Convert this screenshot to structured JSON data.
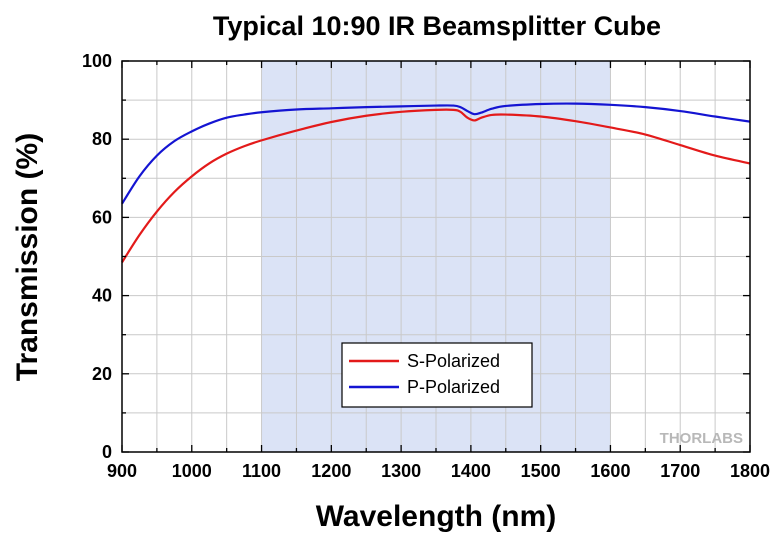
{
  "chart_data": {
    "type": "line",
    "title": "Typical 10:90 IR Beamsplitter Cube",
    "xlabel": "Wavelength (nm)",
    "ylabel": "Transmission (%)",
    "xlim": [
      900,
      1800
    ],
    "ylim": [
      0,
      100
    ],
    "x_ticks": [
      900,
      1000,
      1100,
      1200,
      1300,
      1400,
      1500,
      1600,
      1700,
      1800
    ],
    "y_ticks": [
      0,
      20,
      40,
      60,
      80,
      100
    ],
    "grid": true,
    "highlight_band": {
      "x_start": 1100,
      "x_end": 1600,
      "color": "#dbe3f6"
    },
    "legend": {
      "position": "bottom-center"
    },
    "watermark": "THORLABS",
    "series": [
      {
        "name": "S-Polarized",
        "color": "#e31a1a",
        "x": [
          900,
          925,
          950,
          975,
          1000,
          1025,
          1050,
          1075,
          1100,
          1150,
          1200,
          1250,
          1300,
          1350,
          1375,
          1385,
          1395,
          1405,
          1415,
          1430,
          1450,
          1500,
          1550,
          1600,
          1650,
          1700,
          1750,
          1800
        ],
        "y": [
          48.5,
          55.5,
          61.5,
          66.5,
          70.5,
          73.8,
          76.3,
          78.2,
          79.7,
          82.2,
          84.4,
          86.0,
          87.0,
          87.5,
          87.5,
          87.0,
          85.5,
          84.8,
          85.5,
          86.2,
          86.3,
          85.8,
          84.6,
          83.0,
          81.2,
          78.5,
          75.8,
          73.8
        ]
      },
      {
        "name": "P-Polarized",
        "color": "#1414d2",
        "x": [
          900,
          925,
          950,
          975,
          1000,
          1025,
          1050,
          1075,
          1100,
          1150,
          1200,
          1250,
          1300,
          1350,
          1375,
          1385,
          1395,
          1405,
          1415,
          1430,
          1450,
          1500,
          1550,
          1600,
          1650,
          1700,
          1750,
          1800
        ],
        "y": [
          63.5,
          70.5,
          75.8,
          79.5,
          82.0,
          84.0,
          85.5,
          86.3,
          86.9,
          87.6,
          87.9,
          88.2,
          88.4,
          88.6,
          88.6,
          88.2,
          87.2,
          86.4,
          86.8,
          87.8,
          88.5,
          89.0,
          89.1,
          88.8,
          88.2,
          87.2,
          85.8,
          84.5
        ]
      }
    ]
  }
}
